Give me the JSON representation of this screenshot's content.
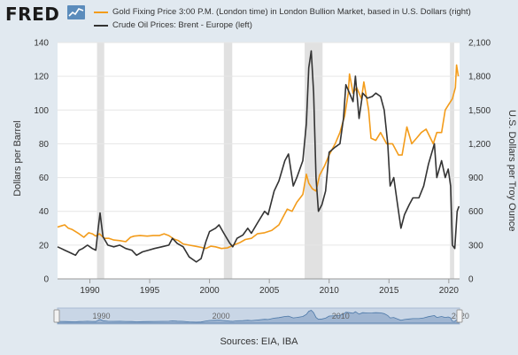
{
  "header": {
    "logo_text": "FRED",
    "legend": [
      {
        "label": "Gold Fixing Price 3:00 P.M. (London time) in London Bullion Market, based in U.S. Dollars (right)",
        "color": "#f39c1b"
      },
      {
        "label": "Crude Oil Prices: Brent - Europe (left)",
        "color": "#333333"
      }
    ]
  },
  "footer": {
    "sources": "Sources: EIA, IBA"
  },
  "chart_data": {
    "type": "line",
    "xlabel": "",
    "x_ticks": [
      1990,
      1995,
      2000,
      2005,
      2010,
      2015,
      2020
    ],
    "xlim": [
      1987.3,
      2020.9
    ],
    "y_left": {
      "label": "Dollars per Barrel",
      "ticks": [
        0,
        20,
        40,
        60,
        80,
        100,
        120,
        140
      ],
      "lim": [
        0,
        140
      ]
    },
    "y_right": {
      "label": "U.S. Dollars per Troy Ounce",
      "ticks": [
        "0",
        "300",
        "600",
        "900",
        "1,200",
        "1,500",
        "1,800",
        "2,100"
      ],
      "lim": [
        0,
        2100
      ]
    },
    "grid": true,
    "recessions": [
      [
        1990.6,
        1991.2
      ],
      [
        2001.2,
        2001.9
      ],
      [
        2007.95,
        2009.45
      ],
      [
        2020.1,
        2020.45
      ]
    ],
    "series": [
      {
        "name": "Gold Fixing Price 3:00 P.M. (London time) in London Bullion Market, based in U.S. Dollars (right)",
        "axis": "right",
        "color": "#f39c1b",
        "x": [
          1987.3,
          1987.6,
          1987.9,
          1988.2,
          1988.5,
          1988.8,
          1989.1,
          1989.5,
          1989.9,
          1990.2,
          1990.5,
          1990.8,
          1991.2,
          1991.6,
          1992.0,
          1992.5,
          1993.0,
          1993.4,
          1993.7,
          1994.2,
          1994.8,
          1995.3,
          1995.8,
          1996.2,
          1996.6,
          1997.0,
          1997.4,
          1997.8,
          1998.3,
          1998.8,
          1999.3,
          1999.7,
          2000.1,
          2000.5,
          2001.0,
          2001.5,
          2002.0,
          2002.5,
          2003.0,
          2003.5,
          2004.0,
          2004.6,
          2005.2,
          2005.8,
          2006.2,
          2006.5,
          2006.9,
          2007.3,
          2007.8,
          2008.1,
          2008.3,
          2008.6,
          2008.9,
          2009.2,
          2009.6,
          2010.0,
          2010.5,
          2010.9,
          2011.3,
          2011.6,
          2011.7,
          2012.0,
          2012.3,
          2012.7,
          2012.9,
          2013.3,
          2013.5,
          2013.9,
          2014.3,
          2014.8,
          2015.3,
          2015.8,
          2016.1,
          2016.5,
          2016.9,
          2017.3,
          2017.7,
          2018.1,
          2018.7,
          2019.0,
          2019.4,
          2019.7,
          2020.0,
          2020.3,
          2020.55,
          2020.65,
          2020.8
        ],
        "values": [
          460,
          470,
          480,
          450,
          440,
          420,
          400,
          370,
          410,
          400,
          380,
          400,
          360,
          360,
          345,
          340,
          330,
          370,
          380,
          385,
          380,
          385,
          385,
          400,
          385,
          355,
          340,
          310,
          300,
          290,
          280,
          270,
          290,
          285,
          270,
          275,
          300,
          320,
          350,
          360,
          400,
          410,
          430,
          480,
          560,
          620,
          600,
          680,
          750,
          930,
          850,
          800,
          780,
          920,
          1000,
          1100,
          1200,
          1300,
          1450,
          1650,
          1820,
          1650,
          1700,
          1600,
          1750,
          1500,
          1250,
          1230,
          1300,
          1200,
          1200,
          1100,
          1100,
          1350,
          1200,
          1250,
          1300,
          1330,
          1200,
          1300,
          1300,
          1500,
          1550,
          1600,
          1700,
          1900,
          1800
        ]
      },
      {
        "name": "Crude Oil Prices: Brent - Europe (left)",
        "axis": "left",
        "color": "#333333",
        "x": [
          1987.3,
          1987.6,
          1987.9,
          1988.2,
          1988.5,
          1988.8,
          1989.1,
          1989.4,
          1989.8,
          1990.2,
          1990.5,
          1990.7,
          1990.85,
          1991.1,
          1991.5,
          1992.0,
          1992.5,
          1993.0,
          1993.5,
          1993.9,
          1994.4,
          1994.9,
          1995.4,
          1996.0,
          1996.6,
          1996.9,
          1997.3,
          1997.8,
          1998.3,
          1998.9,
          1999.3,
          1999.7,
          2000.0,
          2000.5,
          2000.8,
          2001.2,
          2001.7,
          2001.95,
          2002.3,
          2002.8,
          2003.2,
          2003.5,
          2004.0,
          2004.6,
          2004.9,
          2005.4,
          2005.8,
          2006.3,
          2006.6,
          2007.0,
          2007.3,
          2007.8,
          2008.1,
          2008.3,
          2008.5,
          2008.7,
          2008.9,
          2009.1,
          2009.4,
          2009.7,
          2010.0,
          2010.5,
          2010.9,
          2011.2,
          2011.4,
          2011.7,
          2012.0,
          2012.2,
          2012.5,
          2012.8,
          2013.2,
          2013.6,
          2013.9,
          2014.3,
          2014.6,
          2014.9,
          2015.1,
          2015.4,
          2015.7,
          2016.0,
          2016.3,
          2016.7,
          2017.0,
          2017.5,
          2017.9,
          2018.3,
          2018.8,
          2019.0,
          2019.4,
          2019.7,
          2019.95,
          2020.15,
          2020.3,
          2020.5,
          2020.7,
          2020.85
        ],
        "values": [
          19,
          18,
          17,
          16,
          15,
          14,
          17,
          18,
          20,
          18,
          17,
          30,
          39,
          25,
          20,
          19,
          20,
          18,
          17,
          14,
          16,
          17,
          18,
          19,
          20,
          24,
          21,
          19,
          13,
          10,
          12,
          22,
          28,
          30,
          32,
          27,
          21,
          19,
          24,
          26,
          30,
          27,
          33,
          40,
          38,
          52,
          58,
          70,
          74,
          55,
          60,
          70,
          92,
          125,
          135,
          110,
          60,
          40,
          44,
          52,
          75,
          78,
          80,
          95,
          115,
          110,
          105,
          120,
          95,
          110,
          107,
          108,
          110,
          108,
          100,
          80,
          55,
          60,
          45,
          30,
          38,
          44,
          48,
          48,
          55,
          68,
          80,
          60,
          70,
          60,
          65,
          55,
          20,
          18,
          40,
          43
        ]
      }
    ]
  },
  "navigator": {
    "tick_labels": [
      "1990",
      "2000",
      "2010",
      "2020"
    ]
  }
}
